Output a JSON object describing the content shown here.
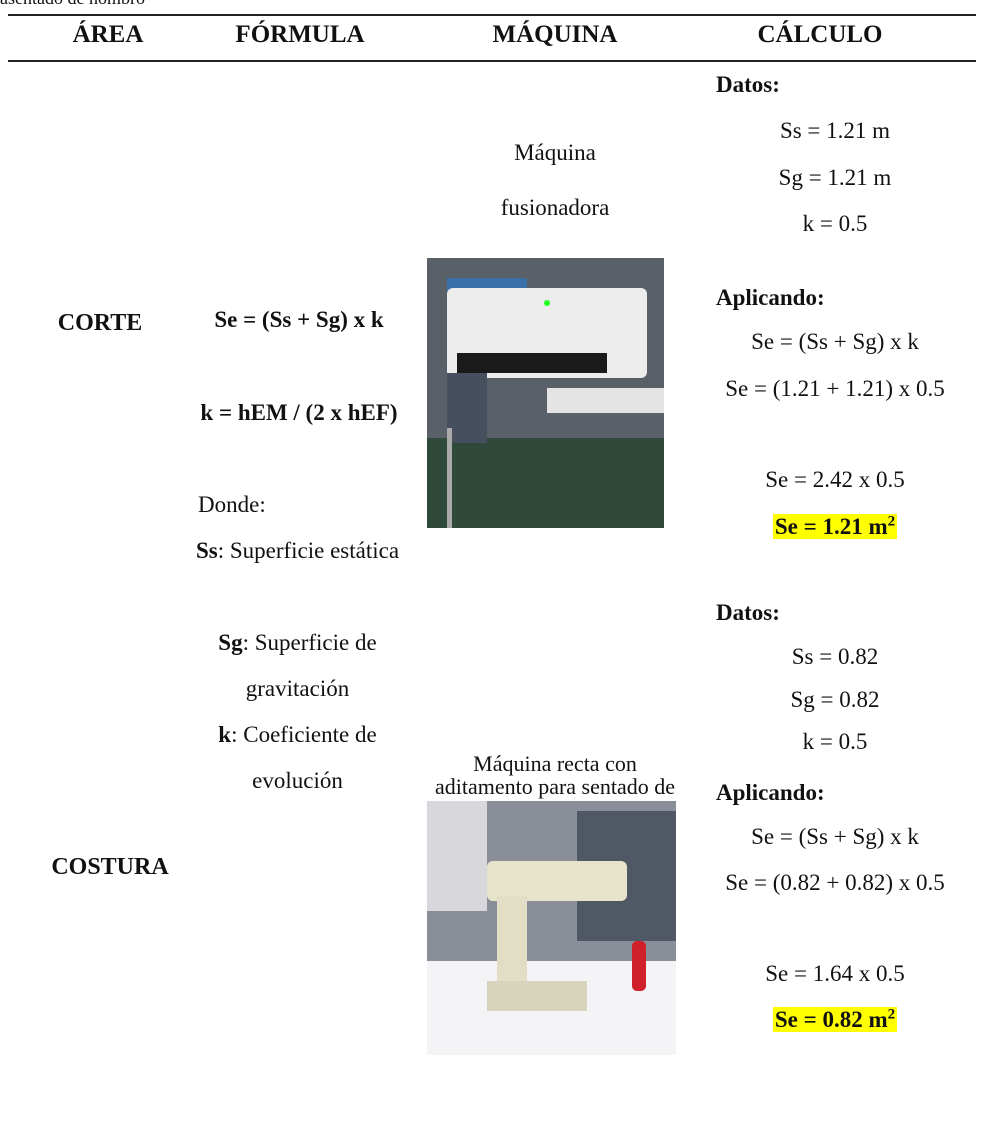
{
  "header": {
    "cut_caption": "asentado de hombro",
    "columns": [
      "ÁREA",
      "FÓRMULA",
      "MÁQUINA",
      "CÁLCULO"
    ]
  },
  "formula": {
    "lines": [
      "Se = (Ss + Sg) x k",
      "k = hEM / (2 x hEF)"
    ],
    "where": "Donde:",
    "definitions": [
      {
        "term": "Ss",
        "text": ": Superficie estática"
      },
      {
        "term": "Sg",
        "text": ": Superficie de gravitación"
      },
      {
        "term": "k",
        "text": ": Coeficiente de evolución"
      }
    ]
  },
  "rows": [
    {
      "area": "CORTE",
      "machine": "Máquina fusionadora",
      "calculation": {
        "data_label": "Datos:",
        "data": [
          "Ss = 1.21 m",
          "Sg = 1.21 m",
          "k = 0.5"
        ],
        "apply_label": "Aplicando:",
        "steps": [
          "Se = (Ss + Sg) x k",
          "Se = (1.21 + 1.21) x 0.5",
          "Se = 2.42 x 0.5"
        ],
        "result": "Se = 1.21 m",
        "result_sup": "2"
      }
    },
    {
      "area": "COSTURA",
      "machine": "Máquina recta con aditamento para sentado de hombro",
      "calculation": {
        "data_label": "Datos:",
        "data": [
          "Ss = 0.82",
          "Sg = 0.82",
          "k = 0.5"
        ],
        "apply_label": "Aplicando:",
        "steps": [
          "Se = (Ss + Sg) x k",
          "Se = (0.82 + 0.82) x 0.5",
          "Se = 1.64 x 0.5"
        ],
        "result": "Se = 0.82 m",
        "result_sup": "2"
      }
    }
  ]
}
